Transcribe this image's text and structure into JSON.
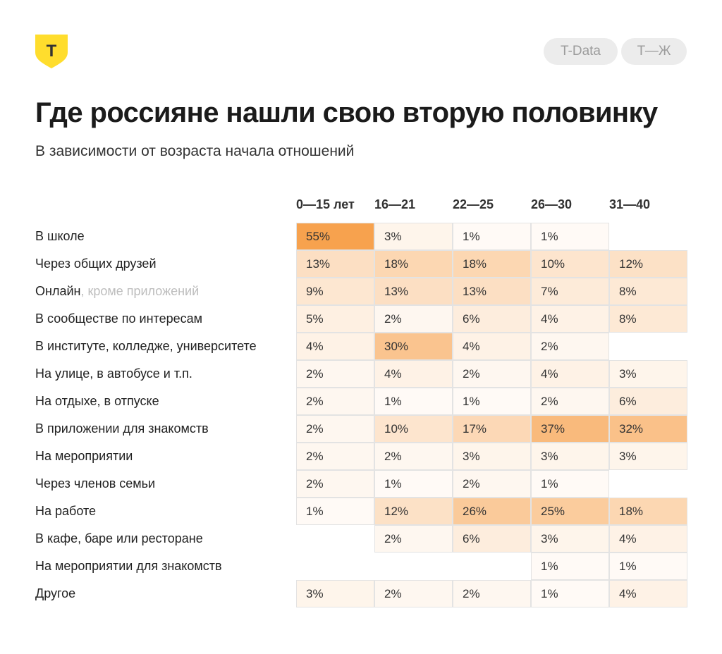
{
  "brand": {
    "logo_letter": "Т",
    "logo_color": "#ffdd2d",
    "pills": [
      "T-Data",
      "Т—Ж"
    ]
  },
  "title": "Где россияне нашли свою вторую половинку",
  "subtitle": "В зависимости от возраста начала отношений",
  "chart_data": {
    "type": "heatmap",
    "title": "Где россияне нашли свою вторую половинку",
    "subtitle": "В зависимости от возраста начала отношений",
    "columns": [
      "0—15 лет",
      "16—21",
      "22—25",
      "26—30",
      "31—40"
    ],
    "rows": [
      {
        "label": "В школе",
        "label_muted": "",
        "values": [
          55,
          3,
          1,
          1,
          null
        ]
      },
      {
        "label": "Через общих друзей",
        "label_muted": "",
        "values": [
          13,
          18,
          18,
          10,
          12
        ]
      },
      {
        "label": "Онлайн",
        "label_muted": ", кроме приложений",
        "values": [
          9,
          13,
          13,
          7,
          8
        ]
      },
      {
        "label": "В сообществе по интересам",
        "label_muted": "",
        "values": [
          5,
          2,
          6,
          4,
          8
        ]
      },
      {
        "label": "В институте, колледже, университете",
        "label_muted": "",
        "values": [
          4,
          30,
          4,
          2,
          null
        ]
      },
      {
        "label": "На улице, в автобусе и т.п.",
        "label_muted": "",
        "values": [
          2,
          4,
          2,
          4,
          3
        ]
      },
      {
        "label": "На отдыхе, в отпуске",
        "label_muted": "",
        "values": [
          2,
          1,
          1,
          2,
          6
        ]
      },
      {
        "label": "В приложении для знакомств",
        "label_muted": "",
        "values": [
          2,
          10,
          17,
          37,
          32
        ]
      },
      {
        "label": "На мероприятии",
        "label_muted": "",
        "values": [
          2,
          2,
          3,
          3,
          3
        ]
      },
      {
        "label": "Через членов семьи",
        "label_muted": "",
        "values": [
          2,
          1,
          2,
          1,
          null
        ]
      },
      {
        "label": "На работе",
        "label_muted": "",
        "values": [
          1,
          12,
          26,
          25,
          18
        ]
      },
      {
        "label": "В кафе, баре или ресторане",
        "label_muted": "",
        "values": [
          null,
          2,
          6,
          3,
          4
        ]
      },
      {
        "label": "На мероприятии для знакомств",
        "label_muted": "",
        "values": [
          null,
          null,
          null,
          1,
          1
        ]
      },
      {
        "label": "Другое",
        "label_muted": "",
        "values": [
          3,
          2,
          2,
          1,
          4
        ]
      }
    ],
    "value_suffix": "%",
    "color_scale": {
      "low": "#ffffff",
      "high": "#f7a24e"
    },
    "legend": "none"
  }
}
